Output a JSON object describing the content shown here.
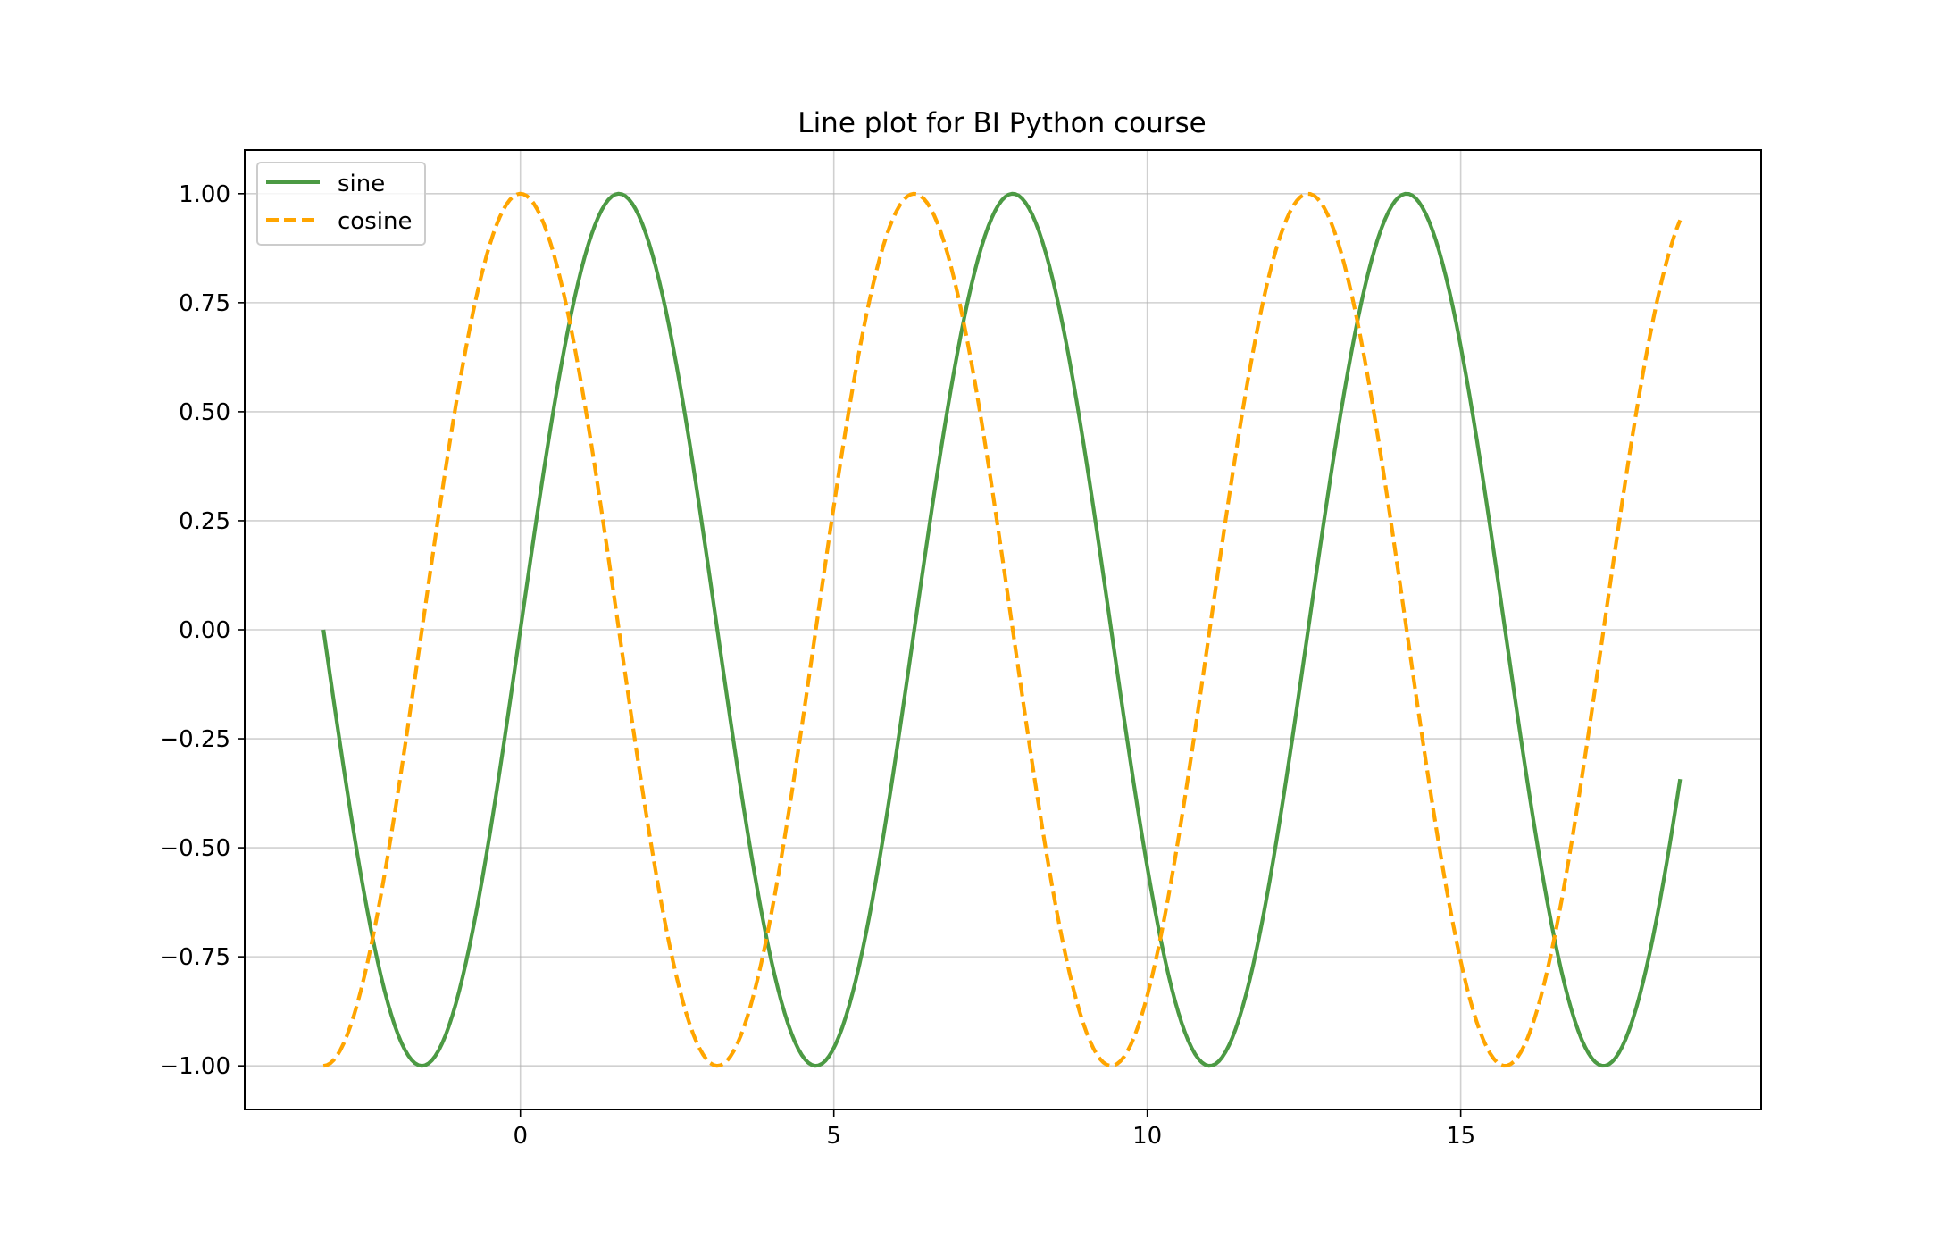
{
  "chart_data": {
    "type": "line",
    "title": "Line plot for BI Python course",
    "xlabel": "",
    "ylabel": "",
    "xlim": [
      -4.398,
      19.792
    ],
    "ylim": [
      -1.1,
      1.1
    ],
    "x_range": [
      -3.1416,
      18.5
    ],
    "x_ticks": [
      "0",
      "5",
      "10",
      "15"
    ],
    "x_tick_values": [
      0,
      5,
      10,
      15
    ],
    "y_ticks": [
      "1.00",
      "0.75",
      "0.50",
      "0.25",
      "0.00",
      "−0.25",
      "−0.50",
      "−0.75",
      "−1.00"
    ],
    "y_tick_values": [
      1.0,
      0.75,
      0.5,
      0.25,
      0.0,
      -0.25,
      -0.5,
      -0.75,
      -1.0
    ],
    "grid": true,
    "legend_position": "top-left",
    "series": [
      {
        "name": "sine",
        "function": "sin",
        "color": "#4c9a44",
        "style": "solid"
      },
      {
        "name": "cosine",
        "function": "cos",
        "color": "#ffa500",
        "style": "dashed"
      }
    ]
  }
}
